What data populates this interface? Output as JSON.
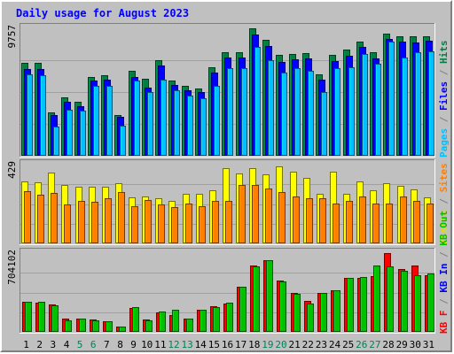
{
  "chart_data": {
    "type": "bar",
    "title": "Daily usage for August 2023",
    "categories": [
      "1",
      "2",
      "3",
      "4",
      "5",
      "6",
      "7",
      "8",
      "9",
      "10",
      "11",
      "12",
      "13",
      "14",
      "15",
      "16",
      "17",
      "18",
      "19",
      "20",
      "21",
      "22",
      "23",
      "24",
      "25",
      "26",
      "27",
      "28",
      "29",
      "30",
      "31"
    ],
    "weekend_days": [
      "5",
      "6",
      "12",
      "13",
      "19",
      "20",
      "26",
      "27"
    ],
    "panels": [
      {
        "id": "hits-files-pages",
        "ymax_label": "9757",
        "ymax": 9757,
        "legend": [
          {
            "name": "Pages",
            "color": "#00c0ff"
          },
          {
            "name": "/",
            "color": "#808080"
          },
          {
            "name": "Files",
            "color": "#0000ff"
          },
          {
            "name": "/",
            "color": "#808080"
          },
          {
            "name": "Hits",
            "color": "#008040"
          }
        ],
        "series": [
          {
            "name": "Hits",
            "color": "#008040",
            "values": [
              7100,
              7100,
              3330,
              4500,
              4100,
              6040,
              6150,
              3150,
              6500,
              5900,
              7350,
              5750,
              5350,
              5150,
              6800,
              7950,
              7950,
              9750,
              8850,
              7700,
              7800,
              7850,
              6220,
              7700,
              8150,
              8750,
              7950,
              9330,
              9140,
              9140,
              9120
            ]
          },
          {
            "name": "Files",
            "color": "#0000ff",
            "values": [
              6650,
              6650,
              3100,
              4150,
              3800,
              5750,
              5800,
              2950,
              6050,
              5200,
              6880,
              5400,
              5000,
              4850,
              6350,
              7500,
              7500,
              9270,
              8400,
              7200,
              7400,
              7450,
              5800,
              7230,
              7650,
              8330,
              7450,
              8950,
              8720,
              8650,
              8800
            ]
          },
          {
            "name": "Pages",
            "color": "#00c0ff",
            "values": [
              6250,
              6150,
              2230,
              3520,
              3450,
              5350,
              5350,
              2320,
              5730,
              4850,
              5830,
              5000,
              4600,
              4400,
              5350,
              6680,
              6720,
              8350,
              7350,
              6380,
              6700,
              6500,
              4850,
              6680,
              6750,
              7770,
              7020,
              8770,
              7500,
              7950,
              8020
            ]
          }
        ]
      },
      {
        "id": "visits-sites",
        "ymax_label": "429",
        "ymax": 429,
        "legend": [
          {
            "name": "Visits",
            "color": "#e0e000"
          },
          {
            "name": "/",
            "color": "#808080"
          },
          {
            "name": "Sites",
            "color": "#ff8000"
          }
        ],
        "series": [
          {
            "name": "Visits",
            "color": "#ffff00",
            "values": [
              339,
              331,
              385,
              319,
              307,
              307,
              307,
              329,
              250,
              254,
              247,
              229,
              269,
              272,
              288,
              409,
              379,
              409,
              375,
              419,
              389,
              359,
              269,
              389,
              269,
              339,
              289,
              329,
              314,
              294,
              249
            ]
          },
          {
            "name": "Sites",
            "color": "#ff8000",
            "values": [
              285,
              264,
              274,
              210,
              231,
              226,
              244,
              281,
              201,
              234,
              210,
              196,
              215,
              203,
              231,
              231,
              319,
              319,
              299,
              279,
              255,
              244,
              244,
              219,
              231,
              254,
              215,
              219,
              254,
              231,
              219
            ]
          }
        ]
      },
      {
        "id": "kbytes",
        "ymax_label": "704102",
        "ymax": 704102,
        "legend": [
          {
            "name": "KB F",
            "color": "#ff0000"
          },
          {
            "name": "/",
            "color": "#808080"
          },
          {
            "name": "KB In",
            "color": "#0000ff"
          },
          {
            "name": "/",
            "color": "#808080"
          },
          {
            "name": "KB Out",
            "color": "#00c000"
          }
        ],
        "series": [
          {
            "name": "KB F",
            "color": "#ff0000",
            "values": [
              270000,
              258000,
              245000,
              115000,
              115000,
              112000,
              96000,
              45000,
              215000,
              109000,
              176000,
              150000,
              116000,
              201000,
              228000,
              250000,
              405000,
              590000,
              640000,
              458000,
              348000,
              280000,
              350000,
              370000,
              480000,
              480000,
              500000,
              704000,
              560000,
              590000,
              510000
            ]
          },
          {
            "name": "KB Out",
            "color": "#00c000",
            "values": [
              270000,
              266000,
              236000,
              106000,
              116000,
              104000,
              94000,
              45000,
              222000,
              105000,
              179000,
              200000,
              116000,
              198000,
              225000,
              260000,
              404000,
              589000,
              639000,
              451000,
              342000,
              253000,
              347000,
              370000,
              485000,
              490000,
              594000,
              588000,
              545000,
              510000,
              520000
            ]
          }
        ]
      }
    ]
  }
}
